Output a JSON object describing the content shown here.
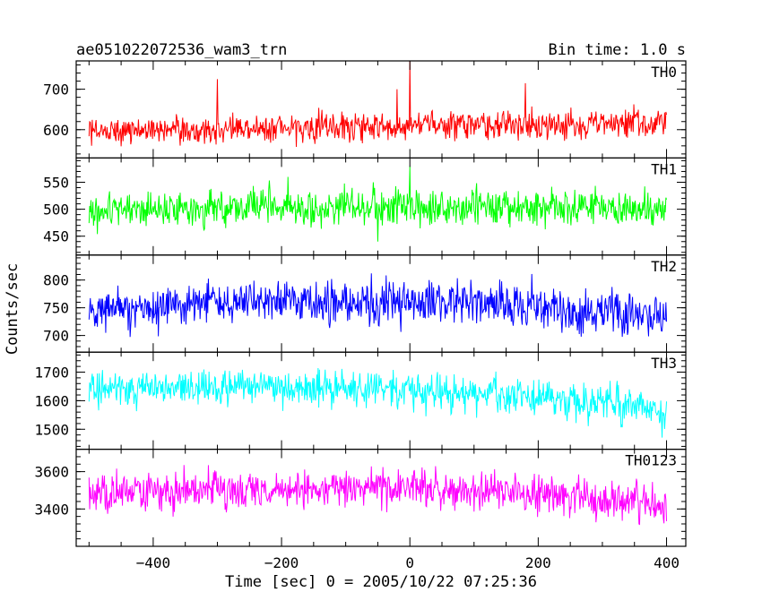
{
  "chart_data": {
    "type": "line",
    "title": "ae051022072536_wam3_trn",
    "bin_time_label": "Bin time: 1.0 s",
    "xlabel": "Time [sec] 0 = 2005/10/22 07:25:36",
    "ylabel": "Counts/sec",
    "xlim": [
      -520,
      430
    ],
    "x_range": [
      -500,
      400
    ],
    "x_ticks": [
      -400,
      -200,
      0,
      200,
      400
    ],
    "x_tick_labels": [
      "−400",
      "−200",
      "0",
      "200",
      "400"
    ],
    "panels": [
      {
        "name": "TH0",
        "color": "#ff0000",
        "ylim": [
          530,
          770
        ],
        "y_ticks": [
          600,
          700
        ],
        "y_tick_labels": [
          "600",
          "700"
        ],
        "mean": 605,
        "noise": 24,
        "trend": [
          [
            -500,
            595
          ],
          [
            -200,
            605
          ],
          [
            0,
            610
          ],
          [
            400,
            615
          ]
        ],
        "spikes": [
          [
            -300,
            725
          ],
          [
            0,
            770
          ],
          [
            -20,
            700
          ],
          [
            180,
            715
          ]
        ]
      },
      {
        "name": "TH1",
        "color": "#00ff00",
        "ylim": [
          415,
          595
        ],
        "y_ticks": [
          450,
          500,
          550
        ],
        "y_tick_labels": [
          "450",
          "500",
          "550"
        ],
        "mean": 500,
        "noise": 23,
        "trend": [
          [
            -500,
            500
          ],
          [
            0,
            505
          ],
          [
            400,
            500
          ]
        ],
        "spikes": [
          [
            -190,
            560
          ],
          [
            0,
            580
          ],
          [
            -50,
            440
          ]
        ]
      },
      {
        "name": "TH2",
        "color": "#0000ff",
        "ylim": [
          670,
          845
        ],
        "y_ticks": [
          700,
          750,
          800
        ],
        "y_tick_labels": [
          "700",
          "750",
          "800"
        ],
        "mean": 755,
        "noise": 28,
        "trend": [
          [
            -500,
            745
          ],
          [
            -300,
            760
          ],
          [
            -100,
            760
          ],
          [
            100,
            760
          ],
          [
            250,
            745
          ],
          [
            400,
            735
          ]
        ],
        "spikes": []
      },
      {
        "name": "TH3",
        "color": "#00ffff",
        "ylim": [
          1430,
          1770
        ],
        "y_ticks": [
          1500,
          1600,
          1700
        ],
        "y_tick_labels": [
          "1500",
          "1600",
          "1700"
        ],
        "mean": 1630,
        "noise": 45,
        "trend": [
          [
            -500,
            1640
          ],
          [
            -200,
            1650
          ],
          [
            0,
            1640
          ],
          [
            200,
            1610
          ],
          [
            300,
            1590
          ],
          [
            400,
            1560
          ]
        ],
        "spikes": []
      },
      {
        "name": "TH0123",
        "color": "#ff00ff",
        "ylim": [
          3200,
          3720
        ],
        "y_ticks": [
          3400,
          3600
        ],
        "y_tick_labels": [
          "3400",
          "3600"
        ],
        "mean": 3490,
        "noise": 70,
        "trend": [
          [
            -500,
            3480
          ],
          [
            -200,
            3510
          ],
          [
            0,
            3510
          ],
          [
            200,
            3480
          ],
          [
            300,
            3450
          ],
          [
            400,
            3420
          ]
        ],
        "spikes": []
      }
    ]
  }
}
